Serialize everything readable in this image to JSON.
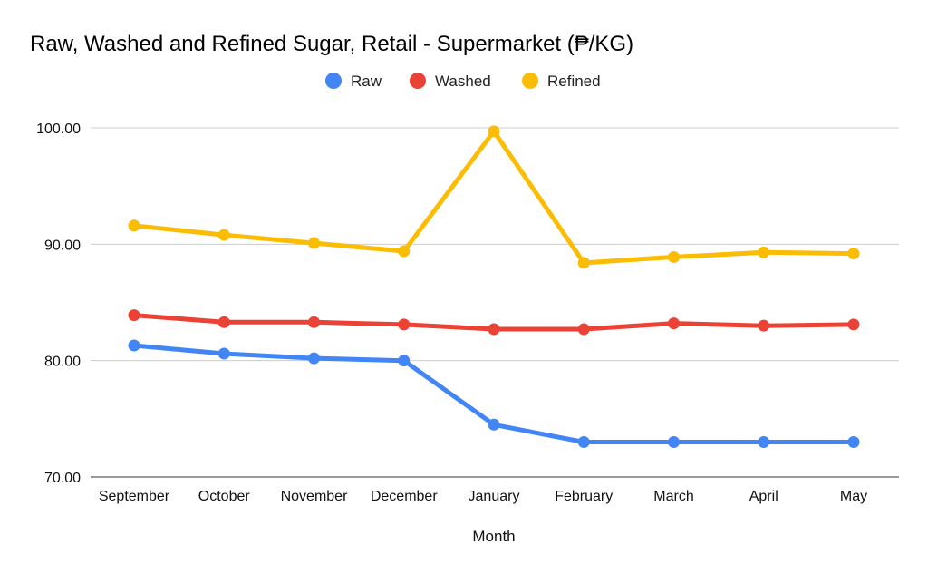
{
  "chart_data": {
    "type": "line",
    "title": "Raw, Washed and Refined Sugar, Retail - Supermarket (₱/KG)",
    "xlabel": "Month",
    "ylabel": "",
    "categories": [
      "September",
      "October",
      "November",
      "December",
      "January",
      "February",
      "March",
      "April",
      "May"
    ],
    "ylim": [
      70,
      100
    ],
    "yticks": [
      "70.00",
      "80.00",
      "90.00",
      "100.00"
    ],
    "grid": true,
    "legend_position": "top-center",
    "series": [
      {
        "name": "Raw",
        "color": "#4285F4",
        "values": [
          81.3,
          80.6,
          80.2,
          80.0,
          74.5,
          73.0,
          73.0,
          73.0,
          73.0
        ]
      },
      {
        "name": "Washed",
        "color": "#EA4335",
        "values": [
          83.9,
          83.3,
          83.3,
          83.1,
          82.7,
          82.7,
          83.2,
          83.0,
          83.1
        ]
      },
      {
        "name": "Refined",
        "color": "#FBBC04",
        "values": [
          91.6,
          90.8,
          90.1,
          89.4,
          99.7,
          88.4,
          88.9,
          89.3,
          89.2
        ]
      }
    ]
  }
}
